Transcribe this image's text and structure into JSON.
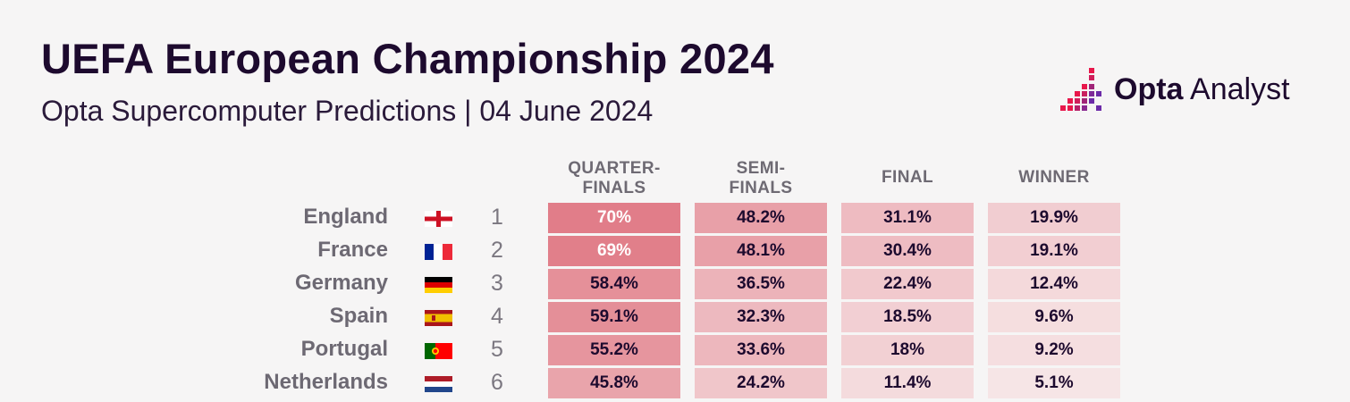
{
  "header": {
    "title": "UEFA European Championship 2024",
    "subtitle": "Opta Supercomputer Predictions | 04 June 2024",
    "logo_bold": "Opta",
    "logo_regular": " Analyst"
  },
  "colors": {
    "title": "#1d0a2e",
    "heat_high": "#e07a86",
    "heat_low": "#f8eded",
    "logo_red": "#e8174b",
    "logo_purple": "#6c2ba8"
  },
  "chart_data": {
    "type": "table",
    "columns": [
      "QUARTER-\nFINALS",
      "SEMI-\nFINALS",
      "FINAL",
      "WINNER"
    ],
    "rows": [
      {
        "team": "England",
        "flag": "england-flag",
        "rank": "1",
        "values": [
          "70%",
          "48.2%",
          "31.1%",
          "19.9%"
        ],
        "numeric": [
          70,
          48.2,
          31.1,
          19.9
        ]
      },
      {
        "team": "France",
        "flag": "france-flag",
        "rank": "2",
        "values": [
          "69%",
          "48.1%",
          "30.4%",
          "19.1%"
        ],
        "numeric": [
          69,
          48.1,
          30.4,
          19.1
        ]
      },
      {
        "team": "Germany",
        "flag": "germany-flag",
        "rank": "3",
        "values": [
          "58.4%",
          "36.5%",
          "22.4%",
          "12.4%"
        ],
        "numeric": [
          58.4,
          36.5,
          22.4,
          12.4
        ]
      },
      {
        "team": "Spain",
        "flag": "spain-flag",
        "rank": "4",
        "values": [
          "59.1%",
          "32.3%",
          "18.5%",
          "9.6%"
        ],
        "numeric": [
          59.1,
          32.3,
          18.5,
          9.6
        ]
      },
      {
        "team": "Portugal",
        "flag": "portugal-flag",
        "rank": "5",
        "values": [
          "55.2%",
          "33.6%",
          "18%",
          "9.2%"
        ],
        "numeric": [
          55.2,
          33.6,
          18,
          9.2
        ]
      },
      {
        "team": "Netherlands",
        "flag": "netherlands-flag",
        "rank": "6",
        "values": [
          "45.8%",
          "24.2%",
          "11.4%",
          "5.1%"
        ],
        "numeric": [
          45.8,
          24.2,
          11.4,
          5.1
        ]
      }
    ]
  }
}
